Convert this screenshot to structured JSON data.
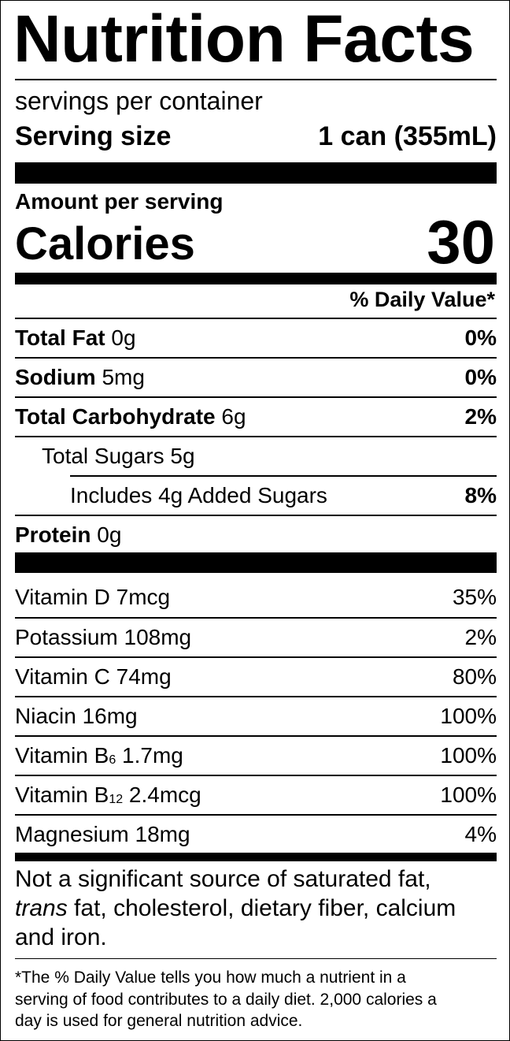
{
  "title": "Nutrition Facts",
  "servings": "servings per container",
  "serving_size": {
    "label": "Serving size",
    "value": "1 can (355mL)"
  },
  "amount_per_serving": "Amount per serving",
  "calories": {
    "label": "Calories",
    "value": "30"
  },
  "dv_header": "% Daily Value*",
  "nutrients": [
    {
      "name": "Total Fat",
      "amount": "0g",
      "dv": "0%"
    },
    {
      "name": "Sodium",
      "amount": "5mg",
      "dv": "0%"
    },
    {
      "name": "Total Carbohydrate",
      "amount": "6g",
      "dv": "2%"
    },
    {
      "name": "Total Sugars 5g"
    },
    {
      "name": "Includes 4g Added Sugars",
      "dv": "8%"
    },
    {
      "name": "Protein",
      "amount": "0g"
    }
  ],
  "vitamins": [
    {
      "name": "Vitamin D 7mcg",
      "dv": "35%"
    },
    {
      "name": "Potassium 108mg",
      "dv": "2%"
    },
    {
      "name": "Vitamin C 74mg",
      "dv": "80%"
    },
    {
      "name": "Niacin 16mg",
      "dv": "100%"
    },
    {
      "name": "Vitamin B",
      "sub": "6",
      "amount": "1.7mg",
      "dv": "100%"
    },
    {
      "name": "Vitamin B",
      "sub": "12",
      "amount": "2.4mcg",
      "dv": "100%"
    },
    {
      "name": "Magnesium 18mg",
      "dv": "4%"
    }
  ],
  "note": {
    "line1": "Not a significant source of saturated fat,",
    "italic": "trans",
    "line2": "fat, cholesterol, dietary fiber, calcium",
    "line3": "and iron."
  },
  "footnote": [
    "*The % Daily Value tells you how much a nutrient in a",
    "serving of food contributes to a daily diet. 2,000 calories a",
    "day is used for general nutrition advice."
  ]
}
